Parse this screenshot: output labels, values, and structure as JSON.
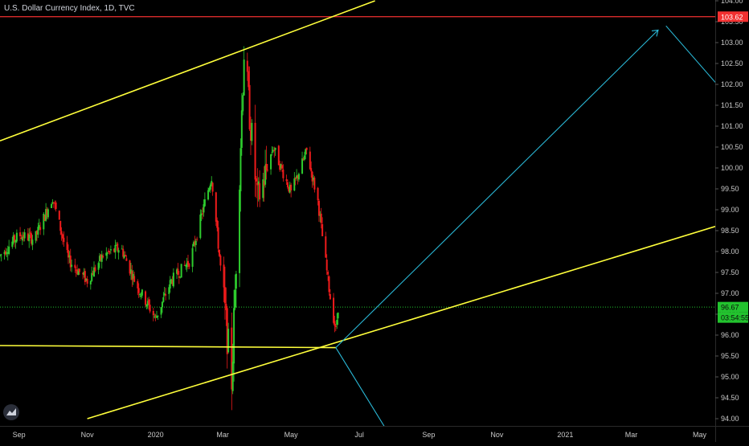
{
  "header": {
    "title": "U.S. Dollar Currency Index, 1D, TVC"
  },
  "colors": {
    "background": "#000000",
    "up_candle": "#26a69a",
    "up_candle_render": "#2ecc2e",
    "down_candle": "#ef1b1b",
    "trendline": "#ffff3b",
    "projection": "#2ab8d6",
    "resistance": "#f23030",
    "last_price_line": "#22c32e",
    "axis_text": "#c9c9c9"
  },
  "price_axis": {
    "ticks": [
      "104.00",
      "103.50",
      "103.00",
      "102.50",
      "102.00",
      "101.50",
      "101.00",
      "100.50",
      "100.00",
      "99.50",
      "99.00",
      "98.50",
      "98.00",
      "97.50",
      "97.00",
      "96.50",
      "96.00",
      "95.50",
      "95.00",
      "94.50",
      "94.00"
    ],
    "resistance_label": "103.62",
    "last_price_label": "96.67",
    "countdown_label": "03:54:55"
  },
  "time_axis": {
    "labels": [
      "Sep",
      "Nov",
      "2020",
      "Mar",
      "May",
      "Jul",
      "Sep",
      "Nov",
      "2021",
      "Mar",
      "May"
    ]
  },
  "chart_data": {
    "type": "candlestick",
    "title": "U.S. Dollar Currency Index, 1D, TVC",
    "y_range": [
      94.0,
      104.0
    ],
    "x_range": [
      "2019-08-15",
      "2021-05-15"
    ],
    "resistance_level": 103.62,
    "last_price": 96.67,
    "price_path": [
      {
        "date": "2019-08-15",
        "close": 97.9
      },
      {
        "date": "2019-09-01",
        "close": 98.4
      },
      {
        "date": "2019-09-15",
        "close": 98.3
      },
      {
        "date": "2019-10-01",
        "close": 99.3
      },
      {
        "date": "2019-10-15",
        "close": 97.8
      },
      {
        "date": "2019-11-01",
        "close": 97.3
      },
      {
        "date": "2019-11-15",
        "close": 97.9
      },
      {
        "date": "2019-12-01",
        "close": 98.1
      },
      {
        "date": "2019-12-15",
        "close": 97.2
      },
      {
        "date": "2020-01-01",
        "close": 96.4
      },
      {
        "date": "2020-01-15",
        "close": 97.3
      },
      {
        "date": "2020-02-01",
        "close": 97.8
      },
      {
        "date": "2020-02-20",
        "close": 99.8
      },
      {
        "date": "2020-03-09",
        "close": 94.9
      },
      {
        "date": "2020-03-20",
        "close": 102.8
      },
      {
        "date": "2020-04-01",
        "close": 99.2
      },
      {
        "date": "2020-04-15",
        "close": 100.5
      },
      {
        "date": "2020-05-01",
        "close": 99.4
      },
      {
        "date": "2020-05-15",
        "close": 100.4
      },
      {
        "date": "2020-05-25",
        "close": 99.2
      },
      {
        "date": "2020-06-05",
        "close": 96.9
      },
      {
        "date": "2020-06-10",
        "close": 96.1
      },
      {
        "date": "2020-06-12",
        "close": 96.67
      }
    ],
    "trendlines": [
      {
        "name": "upper-channel",
        "color": "yellow",
        "from": {
          "date": "2019-08-15",
          "price": 100.65
        },
        "to": {
          "date": "2020-07-15",
          "price": 104.0
        }
      },
      {
        "name": "lower-channel",
        "color": "yellow",
        "from": {
          "date": "2019-11-01",
          "price": 94.0
        },
        "to": {
          "date": "2021-05-15",
          "price": 98.6
        }
      },
      {
        "name": "horizontal-support",
        "color": "yellow",
        "from": {
          "date": "2019-08-15",
          "price": 95.75
        },
        "to": {
          "date": "2020-06-10",
          "price": 95.7
        }
      },
      {
        "name": "projection-up",
        "color": "cyan",
        "from": {
          "date": "2020-06-10",
          "price": 95.7
        },
        "to": {
          "date": "2021-03-25",
          "price": 103.3
        }
      },
      {
        "name": "projection-down-right",
        "color": "cyan",
        "from": {
          "date": "2021-04-01",
          "price": 103.4
        },
        "to": {
          "date": "2021-05-15",
          "price": 102.05
        }
      },
      {
        "name": "projection-down",
        "color": "cyan",
        "from": {
          "date": "2020-06-10",
          "price": 95.7
        },
        "to": {
          "date": "2020-07-26",
          "price": 93.7
        }
      }
    ],
    "ylabel": "",
    "xlabel": "",
    "grid": false,
    "legend": "none"
  }
}
